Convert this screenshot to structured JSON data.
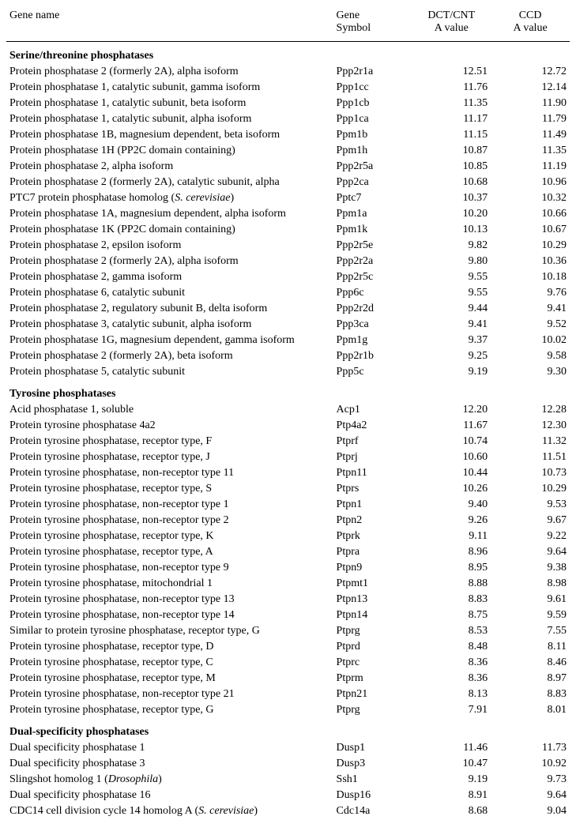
{
  "header": {
    "col1_line1": "Gene name",
    "col2_line1": "Gene",
    "col2_line2": "Symbol",
    "col3_line1": "DCT/CNT",
    "col3_line2": "A value",
    "col4_line1": "CCD",
    "col4_line2": "A value"
  },
  "sections": [
    {
      "title": "Serine/threonine phosphatases",
      "rows": [
        {
          "name_parts": [
            {
              "t": "Protein phosphatase 2 (formerly 2A), alpha isoform"
            }
          ],
          "symbol": "Ppp2r1a",
          "dct": "12.51",
          "ccd": "12.72"
        },
        {
          "name_parts": [
            {
              "t": "Protein phosphatase 1, catalytic subunit, gamma isoform"
            }
          ],
          "symbol": "Ppp1cc",
          "dct": "11.76",
          "ccd": "12.14"
        },
        {
          "name_parts": [
            {
              "t": "Protein phosphatase 1, catalytic subunit, beta isoform"
            }
          ],
          "symbol": "Ppp1cb",
          "dct": "11.35",
          "ccd": "11.90"
        },
        {
          "name_parts": [
            {
              "t": "Protein phosphatase 1, catalytic subunit, alpha isoform"
            }
          ],
          "symbol": "Ppp1ca",
          "dct": "11.17",
          "ccd": "11.79"
        },
        {
          "name_parts": [
            {
              "t": "Protein phosphatase 1B, magnesium dependent, beta isoform"
            }
          ],
          "symbol": "Ppm1b",
          "dct": "11.15",
          "ccd": "11.49"
        },
        {
          "name_parts": [
            {
              "t": "Protein phosphatase 1H (PP2C domain containing)"
            }
          ],
          "symbol": "Ppm1h",
          "dct": "10.87",
          "ccd": "11.35"
        },
        {
          "name_parts": [
            {
              "t": "Protein phosphatase 2, alpha isoform"
            }
          ],
          "symbol": "Ppp2r5a",
          "dct": "10.85",
          "ccd": "11.19"
        },
        {
          "name_parts": [
            {
              "t": "Protein phosphatase 2 (formerly 2A), catalytic subunit, alpha"
            }
          ],
          "symbol": "Ppp2ca",
          "dct": "10.68",
          "ccd": "10.96"
        },
        {
          "name_parts": [
            {
              "t": "PTC7 protein phosphatase homolog ("
            },
            {
              "t": "S. cerevisiae",
              "i": true
            },
            {
              "t": ")"
            }
          ],
          "symbol": "Pptc7",
          "dct": "10.37",
          "ccd": "10.32"
        },
        {
          "name_parts": [
            {
              "t": "Protein phosphatase 1A, magnesium dependent, alpha isoform"
            }
          ],
          "symbol": "Ppm1a",
          "dct": "10.20",
          "ccd": "10.66"
        },
        {
          "name_parts": [
            {
              "t": "Protein phosphatase 1K (PP2C domain containing)"
            }
          ],
          "symbol": "Ppm1k",
          "dct": "10.13",
          "ccd": "10.67"
        },
        {
          "name_parts": [
            {
              "t": "Protein phosphatase 2, epsilon isoform"
            }
          ],
          "symbol": "Ppp2r5e",
          "dct": "9.82",
          "ccd": "10.29"
        },
        {
          "name_parts": [
            {
              "t": "Protein phosphatase 2 (formerly 2A), alpha isoform"
            }
          ],
          "symbol": "Ppp2r2a",
          "dct": "9.80",
          "ccd": "10.36"
        },
        {
          "name_parts": [
            {
              "t": "Protein phosphatase 2, gamma isoform"
            }
          ],
          "symbol": "Ppp2r5c",
          "dct": "9.55",
          "ccd": "10.18"
        },
        {
          "name_parts": [
            {
              "t": "Protein phosphatase 6, catalytic subunit"
            }
          ],
          "symbol": "Ppp6c",
          "dct": "9.55",
          "ccd": "9.76"
        },
        {
          "name_parts": [
            {
              "t": "Protein phosphatase 2, regulatory subunit B, delta isoform"
            }
          ],
          "symbol": "Ppp2r2d",
          "dct": "9.44",
          "ccd": "9.41"
        },
        {
          "name_parts": [
            {
              "t": "Protein phosphatase 3, catalytic subunit, alpha isoform"
            }
          ],
          "symbol": "Ppp3ca",
          "dct": "9.41",
          "ccd": "9.52"
        },
        {
          "name_parts": [
            {
              "t": "Protein phosphatase 1G, magnesium dependent, gamma isoform"
            }
          ],
          "symbol": "Ppm1g",
          "dct": "9.37",
          "ccd": "10.02"
        },
        {
          "name_parts": [
            {
              "t": "Protein phosphatase 2 (formerly 2A), beta isoform"
            }
          ],
          "symbol": "Ppp2r1b",
          "dct": "9.25",
          "ccd": "9.58"
        },
        {
          "name_parts": [
            {
              "t": "Protein phosphatase 5, catalytic subunit"
            }
          ],
          "symbol": "Ppp5c",
          "dct": "9.19",
          "ccd": "9.30"
        }
      ]
    },
    {
      "title": "Tyrosine phosphatases",
      "rows": [
        {
          "name_parts": [
            {
              "t": "Acid phosphatase 1, soluble"
            }
          ],
          "symbol": "Acp1",
          "dct": "12.20",
          "ccd": "12.28"
        },
        {
          "name_parts": [
            {
              "t": "Protein tyrosine phosphatase 4a2"
            }
          ],
          "symbol": "Ptp4a2",
          "dct": "11.67",
          "ccd": "12.30"
        },
        {
          "name_parts": [
            {
              "t": "Protein tyrosine phosphatase, receptor type, F"
            }
          ],
          "symbol": "Ptprf",
          "dct": "10.74",
          "ccd": "11.32"
        },
        {
          "name_parts": [
            {
              "t": "Protein tyrosine phosphatase, receptor type, J"
            }
          ],
          "symbol": "Ptprj",
          "dct": "10.60",
          "ccd": "11.51"
        },
        {
          "name_parts": [
            {
              "t": "Protein tyrosine phosphatase, non-receptor type 11"
            }
          ],
          "symbol": "Ptpn11",
          "dct": "10.44",
          "ccd": "10.73"
        },
        {
          "name_parts": [
            {
              "t": "Protein tyrosine phosphatase, receptor type, S"
            }
          ],
          "symbol": "Ptprs",
          "dct": "10.26",
          "ccd": "10.29"
        },
        {
          "name_parts": [
            {
              "t": "Protein tyrosine phosphatase, non-receptor type 1"
            }
          ],
          "symbol": "Ptpn1",
          "dct": "9.40",
          "ccd": "9.53"
        },
        {
          "name_parts": [
            {
              "t": "Protein tyrosine phosphatase, non-receptor type 2"
            }
          ],
          "symbol": "Ptpn2",
          "dct": "9.26",
          "ccd": "9.67"
        },
        {
          "name_parts": [
            {
              "t": "Protein tyrosine phosphatase, receptor type, K"
            }
          ],
          "symbol": "Ptprk",
          "dct": "9.11",
          "ccd": "9.22"
        },
        {
          "name_parts": [
            {
              "t": "Protein tyrosine phosphatase, receptor type, A"
            }
          ],
          "symbol": "Ptpra",
          "dct": "8.96",
          "ccd": "9.64"
        },
        {
          "name_parts": [
            {
              "t": "Protein tyrosine phosphatase, non-receptor type 9"
            }
          ],
          "symbol": "Ptpn9",
          "dct": "8.95",
          "ccd": "9.38"
        },
        {
          "name_parts": [
            {
              "t": "Protein tyrosine phosphatase, mitochondrial 1"
            }
          ],
          "symbol": "Ptpmt1",
          "dct": "8.88",
          "ccd": "8.98"
        },
        {
          "name_parts": [
            {
              "t": "Protein tyrosine phosphatase, non-receptor type 13"
            }
          ],
          "symbol": "Ptpn13",
          "dct": "8.83",
          "ccd": "9.61"
        },
        {
          "name_parts": [
            {
              "t": "Protein tyrosine phosphatase, non-receptor type 14"
            }
          ],
          "symbol": "Ptpn14",
          "dct": "8.75",
          "ccd": "9.59"
        },
        {
          "name_parts": [
            {
              "t": "Similar to protein tyrosine phosphatase, receptor type, G"
            }
          ],
          "symbol": "Ptprg",
          "dct": "8.53",
          "ccd": "7.55"
        },
        {
          "name_parts": [
            {
              "t": "Protein tyrosine phosphatase, receptor type, D"
            }
          ],
          "symbol": "Ptprd",
          "dct": "8.48",
          "ccd": "8.11"
        },
        {
          "name_parts": [
            {
              "t": "Protein tyrosine phosphatase, receptor type, C"
            }
          ],
          "symbol": "Ptprc",
          "dct": "8.36",
          "ccd": "8.46"
        },
        {
          "name_parts": [
            {
              "t": "Protein tyrosine phosphatase, receptor type, M"
            }
          ],
          "symbol": "Ptprm",
          "dct": "8.36",
          "ccd": "8.97"
        },
        {
          "name_parts": [
            {
              "t": "Protein tyrosine phosphatase, non-receptor type 21"
            }
          ],
          "symbol": "Ptpn21",
          "dct": "8.13",
          "ccd": "8.83"
        },
        {
          "name_parts": [
            {
              "t": "Protein tyrosine phosphatase, receptor type, G"
            }
          ],
          "symbol": "Ptprg",
          "dct": "7.91",
          "ccd": "8.01"
        }
      ]
    },
    {
      "title": "Dual-specificity phosphatases",
      "rows": [
        {
          "name_parts": [
            {
              "t": "Dual specificity phosphatase 1"
            }
          ],
          "symbol": "Dusp1",
          "dct": "11.46",
          "ccd": "11.73"
        },
        {
          "name_parts": [
            {
              "t": "Dual specificity phosphatase 3"
            }
          ],
          "symbol": "Dusp3",
          "dct": "10.47",
          "ccd": "10.92"
        },
        {
          "name_parts": [
            {
              "t": "Slingshot homolog 1 ("
            },
            {
              "t": "Drosophila",
              "i": true
            },
            {
              "t": ")"
            }
          ],
          "symbol": "Ssh1",
          "dct": "9.19",
          "ccd": "9.73"
        },
        {
          "name_parts": [
            {
              "t": "Dual specificity phosphatase 16"
            }
          ],
          "symbol": "Dusp16",
          "dct": "8.91",
          "ccd": "9.64"
        },
        {
          "name_parts": [
            {
              "t": "CDC14 cell division cycle 14 homolog A ("
            },
            {
              "t": "S. cerevisiae",
              "i": true
            },
            {
              "t": ")"
            }
          ],
          "symbol": "Cdc14a",
          "dct": "8.68",
          "ccd": "9.04"
        }
      ]
    }
  ]
}
